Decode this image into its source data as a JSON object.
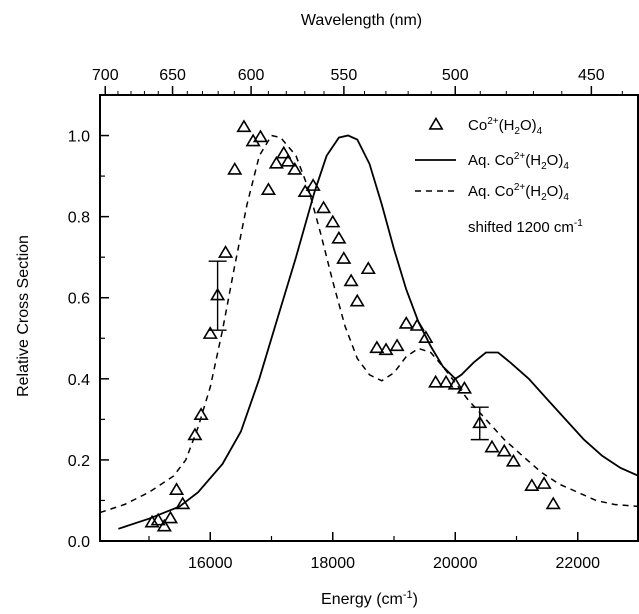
{
  "chart_data": {
    "type": "scatter",
    "title_top_axis": "Wavelength (nm)",
    "xlabel": "Energy (cm",
    "xlabel_sup": "-1",
    "xlabel_end": ")",
    "ylabel": "Relative Cross Section",
    "xlim": [
      14200,
      23000
    ],
    "ylim": [
      0,
      1.1
    ],
    "x_ticks": [
      16000,
      18000,
      20000,
      22000
    ],
    "y_ticks": [
      0.0,
      0.2,
      0.4,
      0.6,
      0.8,
      1.0
    ],
    "y_tick_labels": [
      "0.0",
      "0.2",
      "0.4",
      "0.6",
      "0.8",
      "1.0"
    ],
    "top_ticks_nm": [
      700,
      650,
      600,
      550,
      500,
      450
    ],
    "legend": {
      "placement": "top-right",
      "entries": [
        {
          "marker": "triangle",
          "text": "Co",
          "sup": "2+",
          "mid": "(H",
          "sub1": "2",
          "end": "O)",
          "sub2": "4"
        },
        {
          "marker": "solid",
          "text": "Aq. Co",
          "sup": "2+",
          "mid": "(H",
          "sub1": "2",
          "end": "O)",
          "sub2": "4"
        },
        {
          "marker": "dashed",
          "text": "Aq. Co",
          "sup": "2+",
          "mid": "(H",
          "sub1": "2",
          "end": "O)",
          "sub2": "4"
        }
      ],
      "extra_line": "shifted 1200 cm",
      "extra_sup": "-1"
    },
    "series": [
      {
        "style": "triangles",
        "points": [
          [
            15050,
            0.045
          ],
          [
            15150,
            0.05
          ],
          [
            15250,
            0.035
          ],
          [
            15350,
            0.055
          ],
          [
            15450,
            0.125
          ],
          [
            15550,
            0.09
          ],
          [
            15750,
            0.26
          ],
          [
            15850,
            0.31
          ],
          [
            16000,
            0.51
          ],
          [
            16120,
            0.605
          ],
          [
            16250,
            0.71
          ],
          [
            16400,
            0.915
          ],
          [
            16550,
            1.02
          ],
          [
            16700,
            0.985
          ],
          [
            16820,
            0.995
          ],
          [
            16950,
            0.865
          ],
          [
            17080,
            0.93
          ],
          [
            17200,
            0.955
          ],
          [
            17270,
            0.935
          ],
          [
            17380,
            0.915
          ],
          [
            17550,
            0.86
          ],
          [
            17680,
            0.875
          ],
          [
            17850,
            0.82
          ],
          [
            18000,
            0.785
          ],
          [
            18100,
            0.745
          ],
          [
            18180,
            0.695
          ],
          [
            18300,
            0.64
          ],
          [
            18400,
            0.59
          ],
          [
            18580,
            0.67
          ],
          [
            18720,
            0.475
          ],
          [
            18870,
            0.47
          ],
          [
            19050,
            0.48
          ],
          [
            19200,
            0.535
          ],
          [
            19380,
            0.53
          ],
          [
            19520,
            0.5
          ],
          [
            19680,
            0.39
          ],
          [
            19850,
            0.39
          ],
          [
            20000,
            0.385
          ],
          [
            20150,
            0.375
          ],
          [
            20400,
            0.29
          ],
          [
            20600,
            0.23
          ],
          [
            20800,
            0.22
          ],
          [
            20950,
            0.195
          ],
          [
            21250,
            0.135
          ],
          [
            21450,
            0.14
          ],
          [
            21600,
            0.09
          ]
        ]
      },
      {
        "style": "solid",
        "points": [
          [
            14500,
            0.03
          ],
          [
            15000,
            0.055
          ],
          [
            15500,
            0.085
          ],
          [
            15800,
            0.12
          ],
          [
            16200,
            0.19
          ],
          [
            16500,
            0.27
          ],
          [
            16800,
            0.4
          ],
          [
            17100,
            0.55
          ],
          [
            17400,
            0.7
          ],
          [
            17700,
            0.86
          ],
          [
            17900,
            0.95
          ],
          [
            18100,
            0.995
          ],
          [
            18250,
            1.0
          ],
          [
            18400,
            0.99
          ],
          [
            18600,
            0.93
          ],
          [
            18800,
            0.83
          ],
          [
            19000,
            0.72
          ],
          [
            19200,
            0.62
          ],
          [
            19400,
            0.54
          ],
          [
            19600,
            0.48
          ],
          [
            19800,
            0.43
          ],
          [
            20000,
            0.4
          ],
          [
            20100,
            0.41
          ],
          [
            20300,
            0.44
          ],
          [
            20500,
            0.465
          ],
          [
            20700,
            0.465
          ],
          [
            20900,
            0.44
          ],
          [
            21200,
            0.4
          ],
          [
            21500,
            0.35
          ],
          [
            21800,
            0.3
          ],
          [
            22100,
            0.25
          ],
          [
            22400,
            0.21
          ],
          [
            22700,
            0.18
          ],
          [
            23000,
            0.16
          ]
        ]
      },
      {
        "style": "dashed",
        "points": [
          [
            14200,
            0.07
          ],
          [
            14600,
            0.09
          ],
          [
            15000,
            0.12
          ],
          [
            15400,
            0.16
          ],
          [
            15600,
            0.2
          ],
          [
            15800,
            0.28
          ],
          [
            16000,
            0.38
          ],
          [
            16200,
            0.52
          ],
          [
            16400,
            0.68
          ],
          [
            16600,
            0.83
          ],
          [
            16800,
            0.95
          ],
          [
            17000,
            1.0
          ],
          [
            17150,
            0.995
          ],
          [
            17400,
            0.95
          ],
          [
            17600,
            0.87
          ],
          [
            17800,
            0.76
          ],
          [
            18000,
            0.64
          ],
          [
            18200,
            0.53
          ],
          [
            18400,
            0.45
          ],
          [
            18600,
            0.41
          ],
          [
            18800,
            0.395
          ],
          [
            19000,
            0.415
          ],
          [
            19200,
            0.455
          ],
          [
            19400,
            0.475
          ],
          [
            19600,
            0.465
          ],
          [
            19800,
            0.43
          ],
          [
            20000,
            0.39
          ],
          [
            20200,
            0.35
          ],
          [
            20500,
            0.3
          ],
          [
            20800,
            0.25
          ],
          [
            21100,
            0.21
          ],
          [
            21400,
            0.17
          ],
          [
            21700,
            0.14
          ],
          [
            22000,
            0.12
          ],
          [
            22300,
            0.1
          ],
          [
            22600,
            0.09
          ],
          [
            23000,
            0.085
          ]
        ]
      }
    ],
    "error_bars": [
      {
        "x": 16120,
        "y": 0.605,
        "low": 0.52,
        "high": 0.69
      },
      {
        "x": 20400,
        "y": 0.29,
        "low": 0.25,
        "high": 0.33
      }
    ]
  }
}
